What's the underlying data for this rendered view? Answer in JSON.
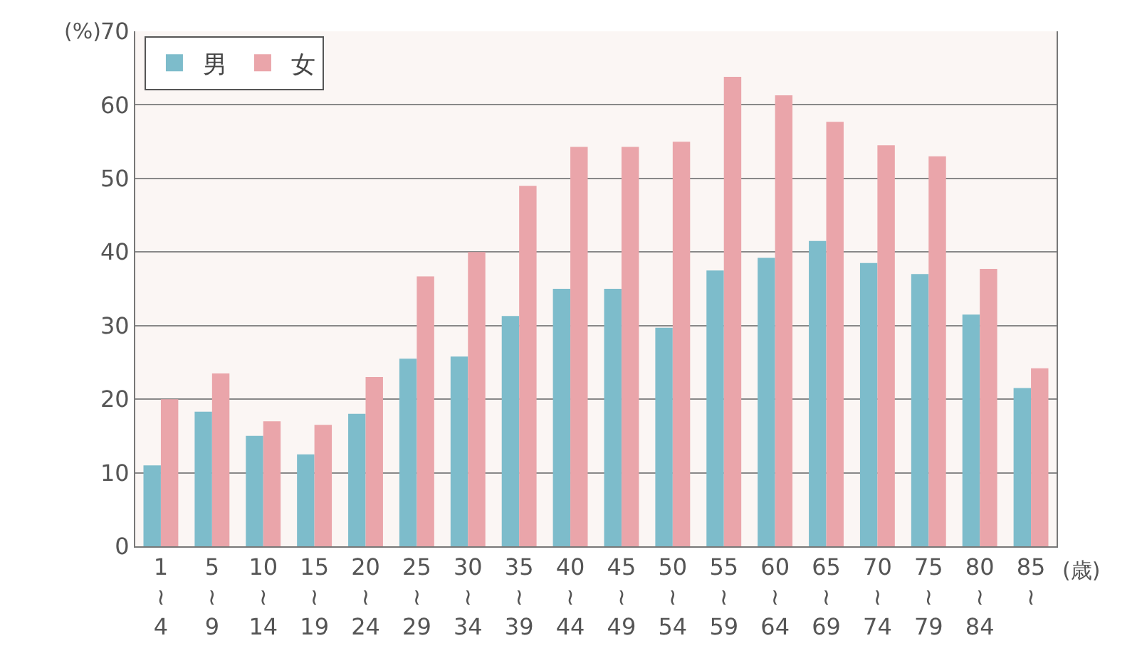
{
  "chart_data": {
    "type": "bar",
    "ylabel": "(%)",
    "xlabel": "(歳)",
    "categories": [
      "1\n≀\n4",
      "5\n≀\n9",
      "10\n≀\n14",
      "15\n≀\n19",
      "20\n≀\n24",
      "25\n≀\n29",
      "30\n≀\n34",
      "35\n≀\n39",
      "40\n≀\n44",
      "45\n≀\n49",
      "50\n≀\n54",
      "55\n≀\n59",
      "60\n≀\n64",
      "65\n≀\n69",
      "70\n≀\n74",
      "75\n≀\n79",
      "80\n≀\n84",
      "85\n≀"
    ],
    "series": [
      {
        "name": "男",
        "color": "#7dbccb",
        "values": [
          11,
          18.3,
          15,
          12.5,
          18,
          25.5,
          25.8,
          31.3,
          35,
          35,
          29.7,
          37.5,
          39.2,
          41.5,
          38.5,
          37,
          31.5,
          21.5
        ]
      },
      {
        "name": "女",
        "color": "#eaa5aa",
        "values": [
          20,
          23.5,
          17,
          16.5,
          23,
          36.7,
          40,
          49,
          54.3,
          54.3,
          55,
          63.8,
          61.3,
          57.7,
          54.5,
          53,
          37.7,
          24.2
        ]
      }
    ],
    "ylim": [
      0,
      70
    ],
    "yticks": [
      0,
      10,
      20,
      30,
      40,
      50,
      60,
      70
    ],
    "grid": "y",
    "legend": "top left"
  }
}
